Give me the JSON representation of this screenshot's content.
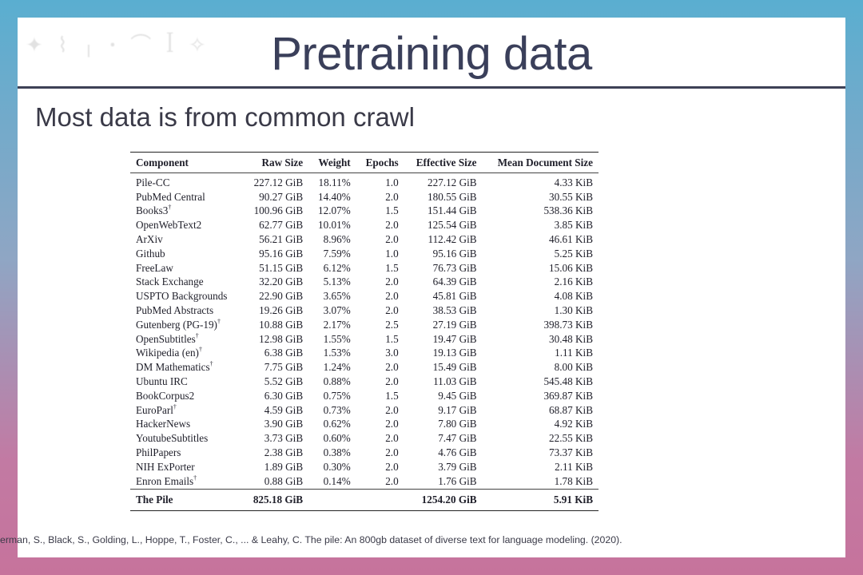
{
  "slide": {
    "title": "Pretraining data",
    "subtitle": "Most data is from common crawl",
    "citation": "erman, S., Black, S., Golding, L., Hoppe, T., Foster, C., ... & Leahy, C. The pile: An 800gb dataset of diverse text for language modeling.  (2020)."
  },
  "table": {
    "headers": [
      "Component",
      "Raw Size",
      "Weight",
      "Epochs",
      "Effective Size",
      "Mean Document Size"
    ],
    "rows": [
      {
        "component": "Pile-CC",
        "dagger": "",
        "raw": "227.12 GiB",
        "weight": "18.11%",
        "epochs": "1.0",
        "effective": "227.12 GiB",
        "mean": "4.33 KiB"
      },
      {
        "component": "PubMed Central",
        "dagger": "",
        "raw": "90.27 GiB",
        "weight": "14.40%",
        "epochs": "2.0",
        "effective": "180.55 GiB",
        "mean": "30.55 KiB"
      },
      {
        "component": "Books3",
        "dagger": "†",
        "raw": "100.96 GiB",
        "weight": "12.07%",
        "epochs": "1.5",
        "effective": "151.44 GiB",
        "mean": "538.36 KiB"
      },
      {
        "component": "OpenWebText2",
        "dagger": "",
        "raw": "62.77 GiB",
        "weight": "10.01%",
        "epochs": "2.0",
        "effective": "125.54 GiB",
        "mean": "3.85 KiB"
      },
      {
        "component": "ArXiv",
        "dagger": "",
        "raw": "56.21 GiB",
        "weight": "8.96%",
        "epochs": "2.0",
        "effective": "112.42 GiB",
        "mean": "46.61 KiB"
      },
      {
        "component": "Github",
        "dagger": "",
        "raw": "95.16 GiB",
        "weight": "7.59%",
        "epochs": "1.0",
        "effective": "95.16 GiB",
        "mean": "5.25 KiB"
      },
      {
        "component": "FreeLaw",
        "dagger": "",
        "raw": "51.15 GiB",
        "weight": "6.12%",
        "epochs": "1.5",
        "effective": "76.73 GiB",
        "mean": "15.06 KiB"
      },
      {
        "component": "Stack Exchange",
        "dagger": "",
        "raw": "32.20 GiB",
        "weight": "5.13%",
        "epochs": "2.0",
        "effective": "64.39 GiB",
        "mean": "2.16 KiB"
      },
      {
        "component": "USPTO Backgrounds",
        "dagger": "",
        "raw": "22.90 GiB",
        "weight": "3.65%",
        "epochs": "2.0",
        "effective": "45.81 GiB",
        "mean": "4.08 KiB"
      },
      {
        "component": "PubMed Abstracts",
        "dagger": "",
        "raw": "19.26 GiB",
        "weight": "3.07%",
        "epochs": "2.0",
        "effective": "38.53 GiB",
        "mean": "1.30 KiB"
      },
      {
        "component": "Gutenberg (PG-19)",
        "dagger": "†",
        "raw": "10.88 GiB",
        "weight": "2.17%",
        "epochs": "2.5",
        "effective": "27.19 GiB",
        "mean": "398.73 KiB"
      },
      {
        "component": "OpenSubtitles",
        "dagger": "†",
        "raw": "12.98 GiB",
        "weight": "1.55%",
        "epochs": "1.5",
        "effective": "19.47 GiB",
        "mean": "30.48 KiB"
      },
      {
        "component": "Wikipedia (en)",
        "dagger": "†",
        "raw": "6.38 GiB",
        "weight": "1.53%",
        "epochs": "3.0",
        "effective": "19.13 GiB",
        "mean": "1.11 KiB"
      },
      {
        "component": "DM Mathematics",
        "dagger": "†",
        "raw": "7.75 GiB",
        "weight": "1.24%",
        "epochs": "2.0",
        "effective": "15.49 GiB",
        "mean": "8.00 KiB"
      },
      {
        "component": "Ubuntu IRC",
        "dagger": "",
        "raw": "5.52 GiB",
        "weight": "0.88%",
        "epochs": "2.0",
        "effective": "11.03 GiB",
        "mean": "545.48 KiB"
      },
      {
        "component": "BookCorpus2",
        "dagger": "",
        "raw": "6.30 GiB",
        "weight": "0.75%",
        "epochs": "1.5",
        "effective": "9.45 GiB",
        "mean": "369.87 KiB"
      },
      {
        "component": "EuroParl",
        "dagger": "†",
        "raw": "4.59 GiB",
        "weight": "0.73%",
        "epochs": "2.0",
        "effective": "9.17 GiB",
        "mean": "68.87 KiB"
      },
      {
        "component": "HackerNews",
        "dagger": "",
        "raw": "3.90 GiB",
        "weight": "0.62%",
        "epochs": "2.0",
        "effective": "7.80 GiB",
        "mean": "4.92 KiB"
      },
      {
        "component": "YoutubeSubtitles",
        "dagger": "",
        "raw": "3.73 GiB",
        "weight": "0.60%",
        "epochs": "2.0",
        "effective": "7.47 GiB",
        "mean": "22.55 KiB"
      },
      {
        "component": "PhilPapers",
        "dagger": "",
        "raw": "2.38 GiB",
        "weight": "0.38%",
        "epochs": "2.0",
        "effective": "4.76 GiB",
        "mean": "73.37 KiB"
      },
      {
        "component": "NIH ExPorter",
        "dagger": "",
        "raw": "1.89 GiB",
        "weight": "0.30%",
        "epochs": "2.0",
        "effective": "3.79 GiB",
        "mean": "2.11 KiB"
      },
      {
        "component": "Enron Emails",
        "dagger": "†",
        "raw": "0.88 GiB",
        "weight": "0.14%",
        "epochs": "2.0",
        "effective": "1.76 GiB",
        "mean": "1.78 KiB"
      }
    ],
    "total": {
      "component": "The Pile",
      "raw": "825.18 GiB",
      "weight": "",
      "epochs": "",
      "effective": "1254.20 GiB",
      "mean": "5.91 KiB"
    }
  }
}
